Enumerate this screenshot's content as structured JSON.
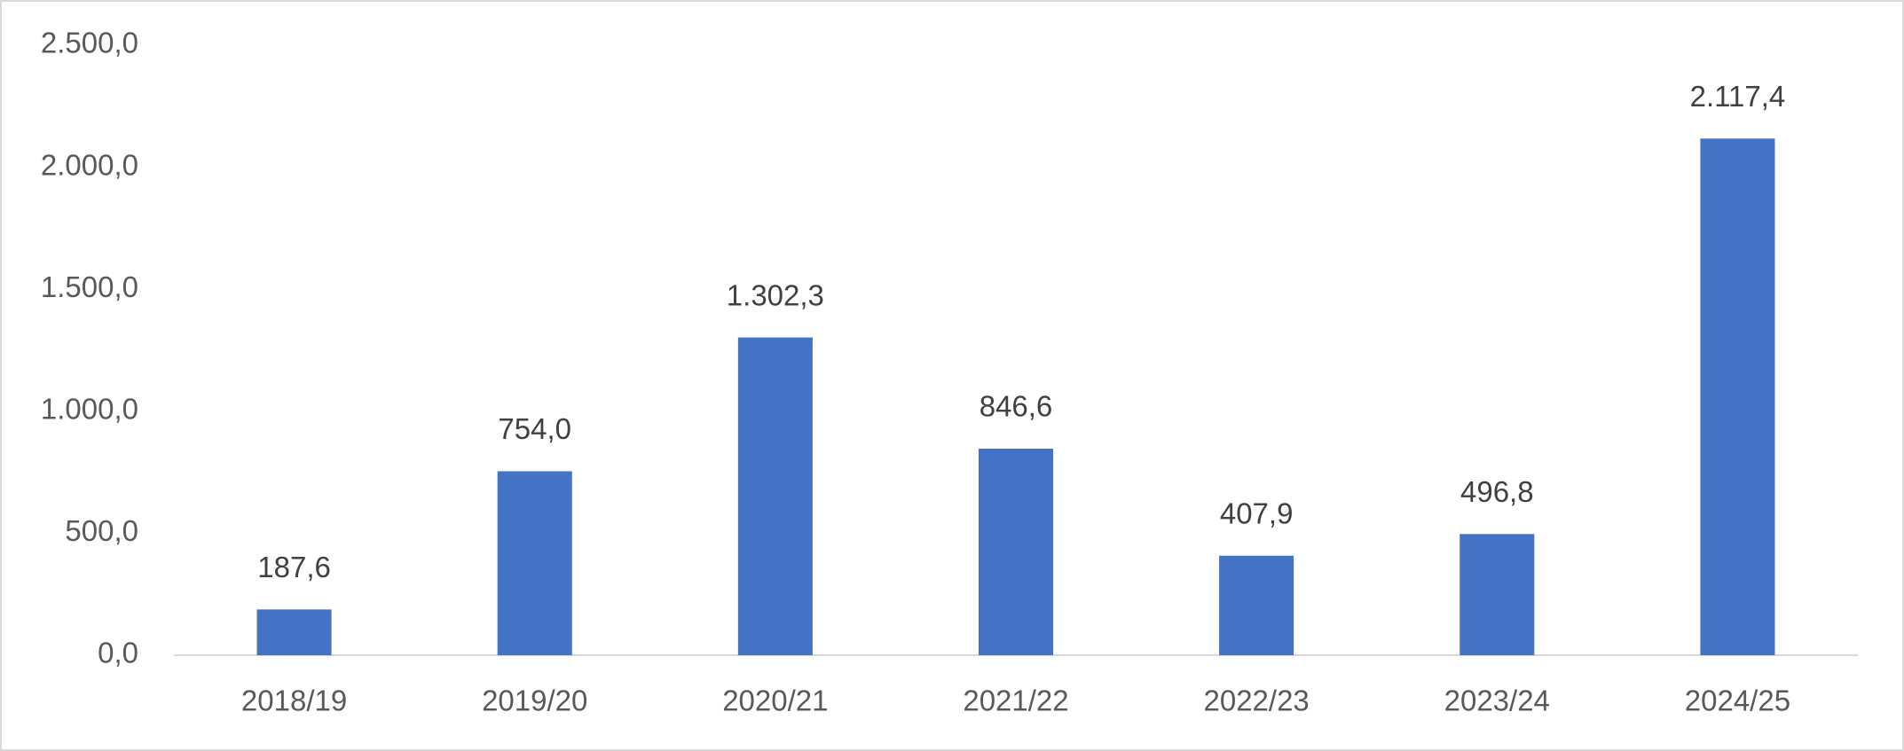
{
  "chart_data": {
    "type": "bar",
    "categories": [
      "2018/19",
      "2019/20",
      "2020/21",
      "2021/22",
      "2022/23",
      "2023/24",
      "2024/25"
    ],
    "values": [
      187.6,
      754.0,
      1302.3,
      846.6,
      407.9,
      496.8,
      2117.4
    ],
    "value_labels": [
      "187,6",
      "754,0",
      "1.302,3",
      "846,6",
      "407,9",
      "496,8",
      "2.117,4"
    ],
    "color": "#4472c4",
    "ylim": [
      0,
      2500
    ],
    "yticks": [
      {
        "value": 0,
        "label": "0,0"
      },
      {
        "value": 500,
        "label": "500,0"
      },
      {
        "value": 1000,
        "label": "1.000,0"
      },
      {
        "value": 1500,
        "label": "1.500,0"
      },
      {
        "value": 2000,
        "label": "2.000,0"
      },
      {
        "value": 2500,
        "label": "2.500,0"
      }
    ],
    "grid": false
  }
}
